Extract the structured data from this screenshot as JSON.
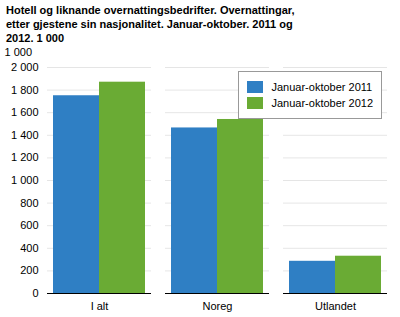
{
  "chart_data": {
    "type": "bar",
    "title": "Hotell og liknande overnattingsbedrifter. Overnattingar, etter gjestene sin nasjonalitet. Januar-oktober. 2011 og 2012. 1 000",
    "y_label": "1 000",
    "categories": [
      "I alt",
      "Noreg",
      "Utlandet"
    ],
    "series": [
      {
        "name": "Januar-oktober 2011",
        "color": "#2f7fc4",
        "values": [
          1750,
          1465,
          285
        ]
      },
      {
        "name": "Januar-oktober  2012",
        "color": "#6aab34",
        "values": [
          1870,
          1540,
          330
        ]
      }
    ],
    "ylim": [
      0,
      2000
    ],
    "yticks": [
      0,
      200,
      400,
      600,
      800,
      {
        "value": 1000,
        "label": "1 000"
      },
      {
        "value": 1200,
        "label": "1 200"
      },
      {
        "value": 1400,
        "label": "1 400"
      },
      {
        "value": 1600,
        "label": "1 600"
      },
      {
        "value": 1800,
        "label": "1 800"
      },
      {
        "value": 2000,
        "label": "2 000"
      }
    ],
    "grid": true,
    "legend": "top-right"
  }
}
